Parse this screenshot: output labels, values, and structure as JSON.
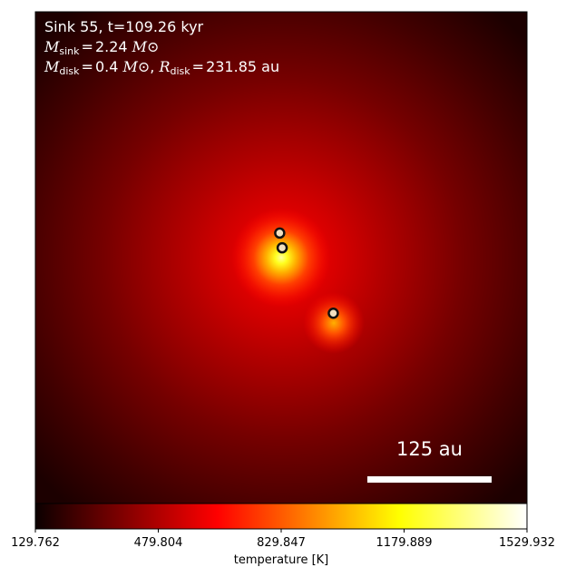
{
  "chart_data": {
    "type": "heatmap",
    "title_lines": {
      "line1": "Sink 55, t=109.26 kyr",
      "m_sink_symbol": "M",
      "m_sink_sub": "sink",
      "m_sink_value": "2.24",
      "m_disk_symbol": "M",
      "m_disk_sub": "disk",
      "m_disk_value": "0.4",
      "r_disk_symbol": "R",
      "r_disk_sub": "disk",
      "r_disk_value": "231.85",
      "solar_unit": "M⊙",
      "au_unit": "au",
      "equals": "=",
      "comma": ","
    },
    "scale_bar_label": "125 au",
    "colorbar": {
      "label": "temperature [K]",
      "colormap": "hot",
      "vmin": 129.762,
      "vmax": 1529.932,
      "ticks": [
        "129.762",
        "479.804",
        "829.847",
        "1179.889",
        "1529.932"
      ]
    },
    "sinks": [
      {
        "x": 0.497,
        "y": 0.55
      },
      {
        "x": 0.502,
        "y": 0.52
      },
      {
        "x": 0.606,
        "y": 0.387
      }
    ],
    "colors": {
      "sink_edge": "#111111",
      "sink_face": "#f2e0c0",
      "background_min": "#000000",
      "background_max": "#ffffff"
    }
  }
}
